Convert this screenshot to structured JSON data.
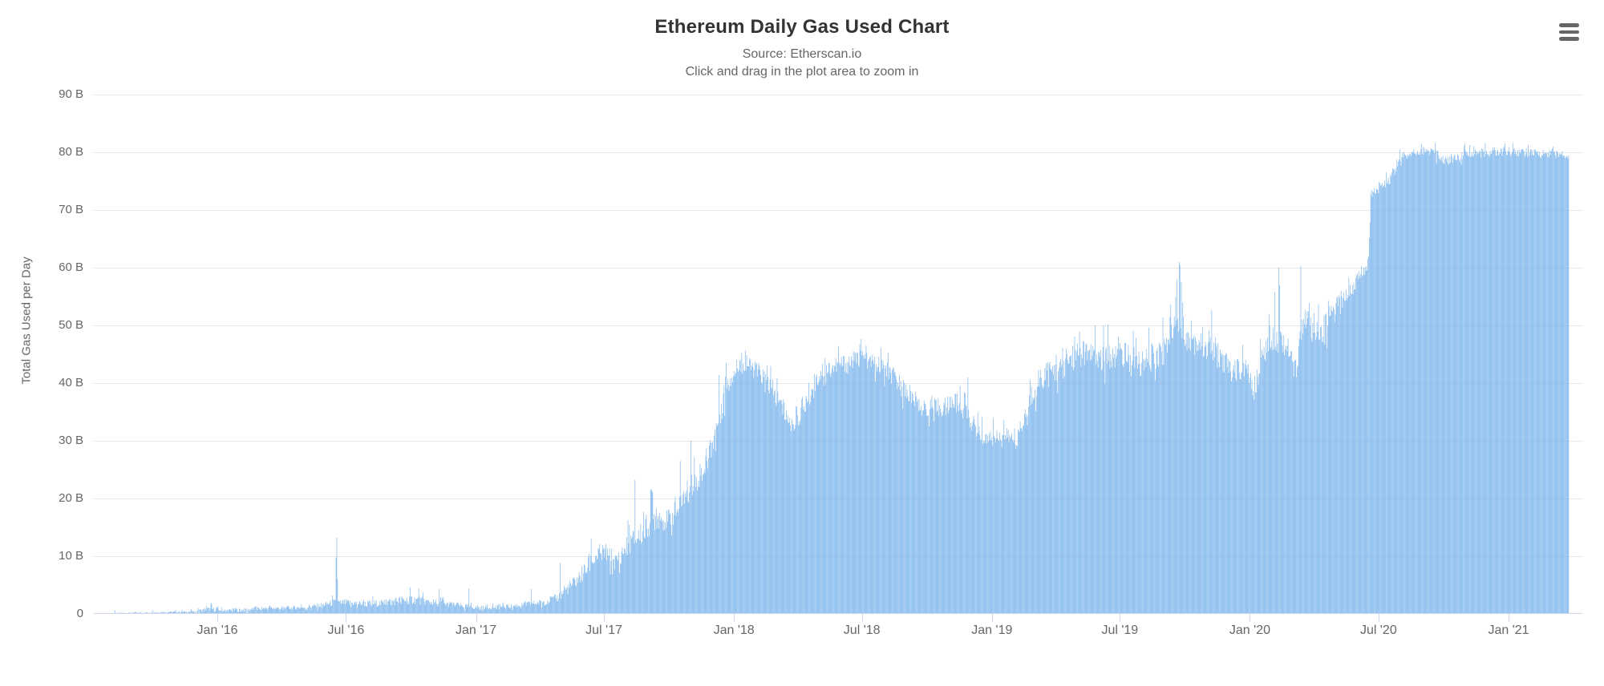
{
  "header": {
    "title": "Ethereum Daily Gas Used Chart",
    "subtitle_source": "Source: Etherscan.io",
    "subtitle_hint": "Click and drag in the plot area to zoom in"
  },
  "context_menu": {
    "icon": "hamburger-menu-icon"
  },
  "chart_data": {
    "type": "bar",
    "title": "Ethereum Daily Gas Used Chart",
    "subtitle_lines": [
      "Source: Etherscan.io",
      "Click and drag in the plot area to zoom in"
    ],
    "ylabel": "Total Gas Used per Day",
    "y_unit": "billion gas per day",
    "ylim_billions": [
      0,
      90
    ],
    "grid": "horizontal-only",
    "legend": "none",
    "x_range": [
      "2015-07-30",
      "2021-03-27"
    ],
    "yticks": [
      [
        0,
        "0"
      ],
      [
        10,
        "10 B"
      ],
      [
        20,
        "20 B"
      ],
      [
        30,
        "30 B"
      ],
      [
        40,
        "40 B"
      ],
      [
        50,
        "50 B"
      ],
      [
        60,
        "60 B"
      ],
      [
        70,
        "70 B"
      ],
      [
        80,
        "80 B"
      ],
      [
        90,
        "90 B"
      ]
    ],
    "xticks": [
      [
        "2016-01-01",
        "Jan '16"
      ],
      [
        "2016-07-01",
        "Jul '16"
      ],
      [
        "2017-01-01",
        "Jan '17"
      ],
      [
        "2017-07-01",
        "Jul '17"
      ],
      [
        "2018-01-01",
        "Jan '18"
      ],
      [
        "2018-07-01",
        "Jul '18"
      ],
      [
        "2019-01-01",
        "Jan '19"
      ],
      [
        "2019-07-01",
        "Jul '19"
      ],
      [
        "2020-01-01",
        "Jan '20"
      ],
      [
        "2020-07-01",
        "Jul '20"
      ],
      [
        "2021-01-01",
        "Jan '21"
      ]
    ],
    "anchors_comment": "Envelope of daily series, values in billions of gas: [date, typical value, daily jitter]",
    "anchors": [
      [
        "2015-07-30",
        0.08,
        0.05
      ],
      [
        "2015-08-20",
        0.15,
        0.09
      ],
      [
        "2015-09-15",
        0.18,
        0.1
      ],
      [
        "2015-10-10",
        0.25,
        0.14
      ],
      [
        "2015-11-05",
        0.33,
        0.18
      ],
      [
        "2015-12-01",
        0.35,
        0.18
      ],
      [
        "2015-12-20",
        0.8,
        0.4
      ],
      [
        "2016-01-15",
        0.55,
        0.3
      ],
      [
        "2016-02-12",
        0.7,
        0.35
      ],
      [
        "2016-03-10",
        0.95,
        0.4
      ],
      [
        "2016-04-05",
        0.95,
        0.36
      ],
      [
        "2016-05-01",
        1.1,
        0.4
      ],
      [
        "2016-05-25",
        1.4,
        0.45
      ],
      [
        "2016-06-14",
        1.9,
        0.65
      ],
      [
        "2016-07-01",
        1.9,
        0.6
      ],
      [
        "2016-07-25",
        1.7,
        0.55
      ],
      [
        "2016-08-20",
        1.8,
        0.6
      ],
      [
        "2016-09-15",
        2.3,
        0.8
      ],
      [
        "2016-10-05",
        2.4,
        0.85
      ],
      [
        "2016-11-01",
        1.9,
        0.65
      ],
      [
        "2016-12-01",
        1.5,
        0.5
      ],
      [
        "2017-01-01",
        1.05,
        0.35
      ],
      [
        "2017-02-01",
        1.1,
        0.38
      ],
      [
        "2017-03-01",
        1.4,
        0.45
      ],
      [
        "2017-04-01",
        1.9,
        0.55
      ],
      [
        "2017-04-25",
        2.6,
        0.8
      ],
      [
        "2017-05-10",
        4.2,
        1.1
      ],
      [
        "2017-05-25",
        5.8,
        1.4
      ],
      [
        "2017-06-08",
        7.8,
        1.8
      ],
      [
        "2017-06-20",
        9.8,
        2.0
      ],
      [
        "2017-07-05",
        10.5,
        1.8
      ],
      [
        "2017-07-18",
        8.8,
        1.5
      ],
      [
        "2017-08-05",
        12.0,
        2.0
      ],
      [
        "2017-08-25",
        13.8,
        2.2
      ],
      [
        "2017-09-08",
        16.5,
        2.4
      ],
      [
        "2017-09-28",
        16.0,
        1.8
      ],
      [
        "2017-10-15",
        18.0,
        2.0
      ],
      [
        "2017-11-01",
        22.0,
        2.4
      ],
      [
        "2017-11-20",
        25.0,
        2.4
      ],
      [
        "2017-12-05",
        31.0,
        3.0
      ],
      [
        "2017-12-18",
        38.0,
        3.0
      ],
      [
        "2018-01-01",
        42.0,
        1.6
      ],
      [
        "2018-01-20",
        43.0,
        1.4
      ],
      [
        "2018-02-08",
        41.5,
        1.8
      ],
      [
        "2018-03-01",
        37.5,
        2.2
      ],
      [
        "2018-03-25",
        32.5,
        1.8
      ],
      [
        "2018-04-15",
        37.0,
        2.4
      ],
      [
        "2018-05-05",
        42.0,
        1.8
      ],
      [
        "2018-06-01",
        43.0,
        1.8
      ],
      [
        "2018-07-01",
        44.3,
        1.5
      ],
      [
        "2018-08-01",
        42.5,
        1.8
      ],
      [
        "2018-09-01",
        38.5,
        1.8
      ],
      [
        "2018-09-25",
        35.5,
        1.4
      ],
      [
        "2018-10-20",
        35.5,
        1.8
      ],
      [
        "2018-11-10",
        36.5,
        2.0
      ],
      [
        "2018-12-01",
        33.5,
        1.6
      ],
      [
        "2018-12-22",
        30.0,
        1.4
      ],
      [
        "2019-01-15",
        31.0,
        1.5
      ],
      [
        "2019-02-05",
        29.8,
        1.4
      ],
      [
        "2019-03-05",
        40.0,
        2.5
      ],
      [
        "2019-04-01",
        42.5,
        2.7
      ],
      [
        "2019-05-05",
        45.0,
        2.6
      ],
      [
        "2019-06-01",
        44.0,
        2.4
      ],
      [
        "2019-07-01",
        45.0,
        2.4
      ],
      [
        "2019-08-01",
        43.0,
        2.4
      ],
      [
        "2019-09-01",
        45.5,
        2.6
      ],
      [
        "2019-09-20",
        52.0,
        2.8
      ],
      [
        "2019-10-05",
        47.5,
        2.5
      ],
      [
        "2019-11-05",
        46.5,
        2.7
      ],
      [
        "2019-12-05",
        42.0,
        2.2
      ],
      [
        "2019-12-28",
        42.0,
        2.0
      ],
      [
        "2020-01-07",
        38.0,
        1.8
      ],
      [
        "2020-01-18",
        44.5,
        2.4
      ],
      [
        "2020-02-01",
        48.0,
        2.6
      ],
      [
        "2020-02-20",
        47.0,
        2.5
      ],
      [
        "2020-03-05",
        41.5,
        2.4
      ],
      [
        "2020-03-18",
        52.0,
        2.2
      ],
      [
        "2020-04-01",
        47.5,
        2.2
      ],
      [
        "2020-04-20",
        50.5,
        2.3
      ],
      [
        "2020-05-10",
        54.0,
        2.0
      ],
      [
        "2020-05-31",
        57.5,
        1.7
      ],
      [
        "2020-06-17",
        61.0,
        1.1
      ],
      [
        "2020-06-20",
        72.5,
        1.0
      ],
      [
        "2020-07-05",
        74.0,
        1.1
      ],
      [
        "2020-07-18",
        75.5,
        1.1
      ],
      [
        "2020-07-26",
        77.5,
        1.0
      ],
      [
        "2020-08-05",
        79.3,
        0.9
      ],
      [
        "2020-08-25",
        80.2,
        0.8
      ],
      [
        "2020-09-15",
        80.0,
        0.8
      ],
      [
        "2020-10-07",
        78.4,
        0.9
      ],
      [
        "2020-10-20",
        79.3,
        0.8
      ],
      [
        "2020-11-10",
        79.8,
        0.8
      ],
      [
        "2020-12-10",
        79.8,
        0.8
      ],
      [
        "2021-01-10",
        80.0,
        0.8
      ],
      [
        "2021-02-10",
        79.7,
        0.8
      ],
      [
        "2021-03-10",
        79.6,
        0.8
      ],
      [
        "2021-03-27",
        79.4,
        0.7
      ]
    ],
    "spikes_comment": "Notable single-day peaks, billions of gas",
    "spikes": [
      [
        "2015-08-09",
        0.6
      ],
      [
        "2015-10-02",
        0.65
      ],
      [
        "2015-11-25",
        0.85
      ],
      [
        "2015-12-17",
        1.4
      ],
      [
        "2015-12-23",
        1.9
      ],
      [
        "2016-01-02",
        1.3
      ],
      [
        "2016-02-25",
        1.3
      ],
      [
        "2016-03-15",
        1.5
      ],
      [
        "2016-06-17",
        9.7
      ],
      [
        "2016-06-18",
        13.2
      ],
      [
        "2016-06-19",
        6.0
      ],
      [
        "2016-09-30",
        4.6
      ],
      [
        "2016-10-12",
        4.4
      ],
      [
        "2016-11-10",
        4.3
      ],
      [
        "2016-12-22",
        4.4
      ],
      [
        "2017-03-20",
        4.3
      ],
      [
        "2017-04-30",
        8.8
      ],
      [
        "2017-06-13",
        13.0
      ],
      [
        "2017-08-14",
        23.2
      ],
      [
        "2017-09-05",
        21.5
      ],
      [
        "2017-10-17",
        26.5
      ],
      [
        "2017-11-01",
        30.0
      ],
      [
        "2017-12-21",
        43.5
      ],
      [
        "2018-01-05",
        44.0
      ],
      [
        "2018-07-02",
        45.5
      ],
      [
        "2018-11-17",
        39.5
      ],
      [
        "2018-11-28",
        41.0
      ],
      [
        "2019-05-05",
        48.9
      ],
      [
        "2019-06-29",
        48.0
      ],
      [
        "2019-09-18",
        55.0
      ],
      [
        "2019-09-20",
        58.0
      ],
      [
        "2019-09-23",
        61.0
      ],
      [
        "2019-09-24",
        60.5
      ],
      [
        "2019-09-26",
        57.5
      ],
      [
        "2019-09-28",
        54.0
      ],
      [
        "2019-11-08",
        52.6
      ],
      [
        "2020-01-28",
        52.0
      ],
      [
        "2020-02-05",
        55.8
      ],
      [
        "2020-02-11",
        60.0
      ],
      [
        "2020-02-12",
        57.0
      ],
      [
        "2020-03-13",
        60.3
      ],
      [
        "2020-05-20",
        58.3
      ],
      [
        "2020-12-26",
        81.0
      ],
      [
        "2021-01-29",
        81.2
      ]
    ],
    "colors": {
      "bar": "#7cb5ec",
      "grid": "#e6e6e6",
      "axis_line": "#ccd6eb",
      "title_text": "#333333",
      "subtitle_text": "#666666",
      "axis_text": "#666666",
      "background": "#ffffff"
    }
  }
}
